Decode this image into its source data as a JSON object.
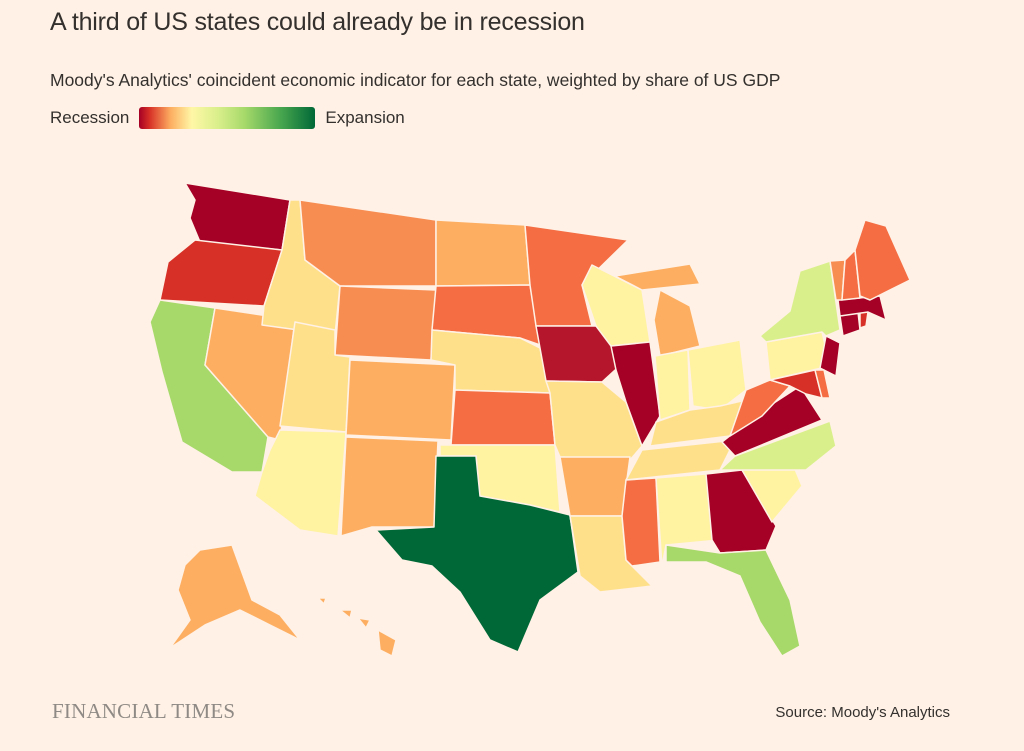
{
  "header": {
    "title": "A third of US states could already be in recession",
    "subtitle": "Moody's Analytics' coincident economic indicator for each state, weighted by share of US GDP"
  },
  "legend": {
    "low_label": "Recession",
    "high_label": "Expansion",
    "scale_colors": [
      "#a50026",
      "#d73027",
      "#fdae61",
      "#fff7a6",
      "#d9ef8b",
      "#a6d96a",
      "#006837"
    ]
  },
  "chart_data": {
    "type": "choropleth",
    "region": "United States",
    "color_scale": "Recession to Expansion",
    "state_colors": {
      "WA": "#a50026",
      "OR": "#d73027",
      "CA": "#a6d96a",
      "NV": "#fdae61",
      "ID": "#fee08b",
      "MT": "#f88d52",
      "WY": "#f88d52",
      "UT": "#fee08b",
      "AZ": "#fff2a0",
      "CO": "#fdae61",
      "NM": "#fdae61",
      "ND": "#fdae61",
      "SD": "#f46d43",
      "NE": "#fee08b",
      "KS": "#f46d43",
      "OK": "#fff2a0",
      "TX": "#006837",
      "MN": "#f46d43",
      "IA": "#b5162b",
      "MO": "#fee08b",
      "AR": "#fdae61",
      "LA": "#fee08b",
      "WI": "#fff2a0",
      "IL": "#a50026",
      "MI": "#fdae61",
      "IN": "#fff2a0",
      "OH": "#fff2a0",
      "KY": "#fee08b",
      "TN": "#fee08b",
      "MS": "#f46d43",
      "AL": "#fff2a0",
      "GA": "#a50026",
      "FL": "#a6d96a",
      "SC": "#fff2a0",
      "NC": "#d9ef8b",
      "VA": "#a50026",
      "WV": "#f46d43",
      "PA": "#fff2a0",
      "NY": "#d9ef8b",
      "NJ": "#a50026",
      "MD": "#d73027",
      "DE": "#f46d43",
      "CT": "#a50026",
      "MA": "#a50026",
      "RI": "#d73027",
      "VT": "#f88d52",
      "NH": "#f46d43",
      "ME": "#f46d43",
      "AK": "#fdae61",
      "HI": "#fdae61"
    }
  },
  "footer": {
    "logo": "FINANCIAL TIMES",
    "source": "Source: Moody's Analytics"
  }
}
